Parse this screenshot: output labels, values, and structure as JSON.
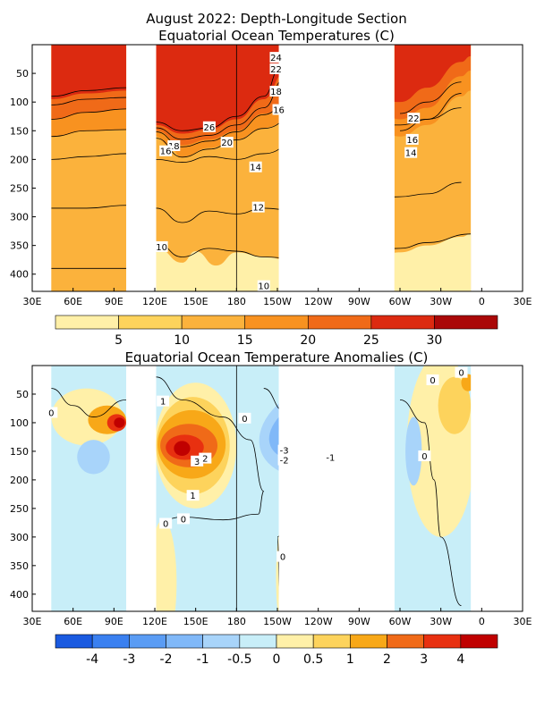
{
  "chart_data": [
    {
      "type": "heatmap",
      "title": "August 2022: Depth-Longitude Section",
      "subtitle": "Equatorial Ocean Temperatures (C)",
      "x_ticks": [
        "30E",
        "60E",
        "90E",
        "120E",
        "150E",
        "180",
        "150W",
        "120W",
        "90W",
        "60W",
        "30W",
        "0",
        "30E"
      ],
      "y_ticks": [
        "50",
        "100",
        "150",
        "200",
        "250",
        "300",
        "350",
        "400"
      ],
      "ylim": [
        430,
        0
      ],
      "colorbar": {
        "boundaries": [
          0,
          5,
          10,
          15,
          20,
          25,
          30,
          35
        ],
        "tick_labels": [
          "5",
          "10",
          "15",
          "20",
          "25",
          "30"
        ],
        "colors": [
          "#fff0a8",
          "#fdd35c",
          "#fbb23c",
          "#f89220",
          "#f06a18",
          "#dc2a10",
          "#aa0808"
        ]
      },
      "contour_labels": [
        {
          "text": "24",
          "lon": 209,
          "depth": 22
        },
        {
          "text": "22",
          "lon": 209,
          "depth": 42
        },
        {
          "text": "18",
          "lon": 209,
          "depth": 81
        },
        {
          "text": "16",
          "lon": 211,
          "depth": 113
        },
        {
          "text": "26",
          "lon": 160,
          "depth": 143
        },
        {
          "text": "20",
          "lon": 173,
          "depth": 170
        },
        {
          "text": "18",
          "lon": 134,
          "depth": 176
        },
        {
          "text": "16",
          "lon": 128,
          "depth": 185
        },
        {
          "text": "14",
          "lon": 194,
          "depth": 213
        },
        {
          "text": "12",
          "lon": 196,
          "depth": 283
        },
        {
          "text": "10",
          "lon": 125,
          "depth": 352
        },
        {
          "text": "10",
          "lon": 200,
          "depth": 420
        },
        {
          "text": "22",
          "lon": 310,
          "depth": 128
        },
        {
          "text": "16",
          "lon": 309,
          "depth": 165
        },
        {
          "text": "14",
          "lon": 308,
          "depth": 188
        }
      ]
    },
    {
      "type": "heatmap",
      "title": "Equatorial Ocean Temperature Anomalies (C)",
      "x_ticks": [
        "30E",
        "60E",
        "90E",
        "120E",
        "150E",
        "180",
        "150W",
        "120W",
        "90W",
        "60W",
        "30W",
        "0",
        "30E"
      ],
      "y_ticks": [
        "50",
        "100",
        "150",
        "200",
        "250",
        "300",
        "350",
        "400"
      ],
      "ylim": [
        430,
        0
      ],
      "colorbar": {
        "boundaries": [
          -5,
          -4,
          -3,
          -2,
          -1,
          -0.5,
          0,
          0.5,
          1,
          2,
          3,
          4,
          5
        ],
        "tick_labels": [
          "-4",
          "-3",
          "-2",
          "-1",
          "-0.5",
          "0",
          "0.5",
          "1",
          "2",
          "3",
          "4"
        ],
        "colors": [
          "#1a5ae0",
          "#3a80f0",
          "#5a9cf4",
          "#80b8f8",
          "#a8d4fa",
          "#c8eef8",
          "#fff0a8",
          "#fdd35c",
          "#f8a818",
          "#f06a18",
          "#e83010",
          "#c00000"
        ]
      },
      "contour_labels": [
        {
          "text": "0",
          "lon": 44,
          "depth": 82
        },
        {
          "text": "1",
          "lon": 126,
          "depth": 62
        },
        {
          "text": "0",
          "lon": 186,
          "depth": 92
        },
        {
          "text": "3",
          "lon": 151,
          "depth": 167
        },
        {
          "text": "2",
          "lon": 157,
          "depth": 162
        },
        {
          "text": "1",
          "lon": 148,
          "depth": 227
        },
        {
          "text": "0",
          "lon": 128,
          "depth": 276
        },
        {
          "text": "0",
          "lon": 141,
          "depth": 268
        },
        {
          "text": "-3",
          "lon": 215,
          "depth": 148
        },
        {
          "text": "-2",
          "lon": 215,
          "depth": 165
        },
        {
          "text": "-1",
          "lon": 249,
          "depth": 160
        },
        {
          "text": "0",
          "lon": 214,
          "depth": 334
        },
        {
          "text": "0",
          "lon": 324,
          "depth": 25
        },
        {
          "text": "0",
          "lon": 345,
          "depth": 12
        },
        {
          "text": "0",
          "lon": 318,
          "depth": 158
        }
      ]
    }
  ]
}
